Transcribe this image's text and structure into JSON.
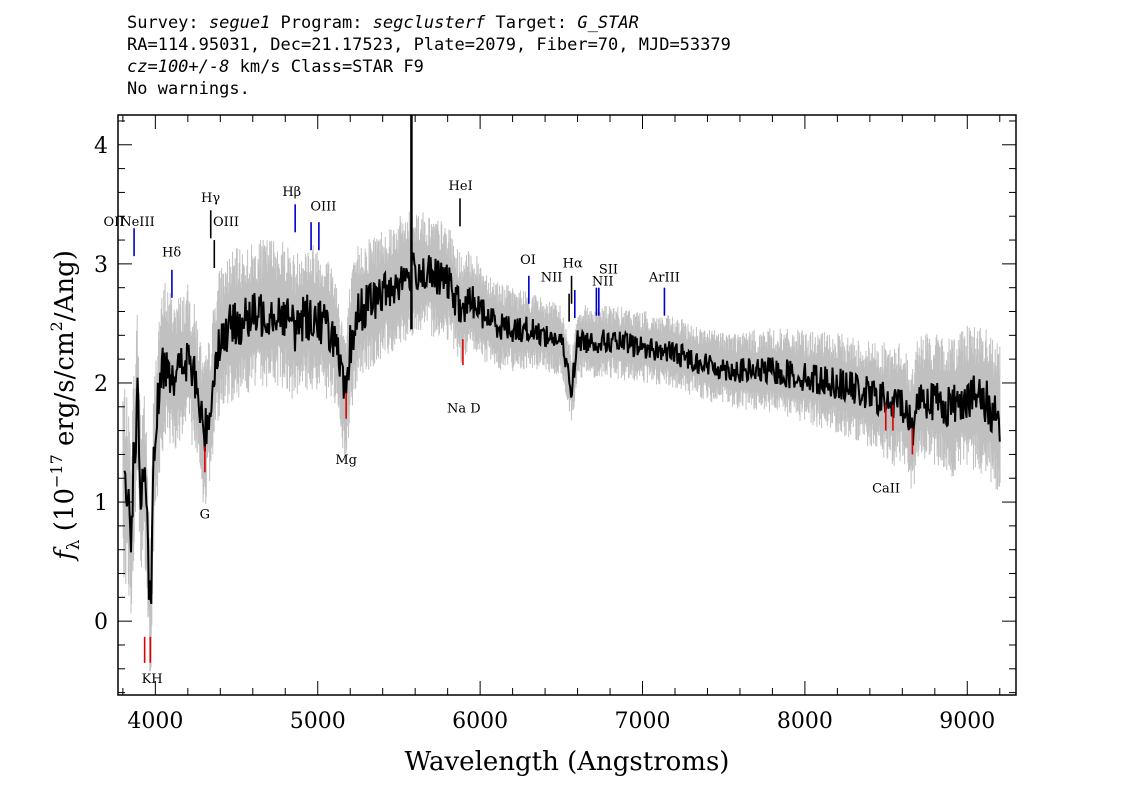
{
  "header": {
    "line1": {
      "survey_label": "Survey: ",
      "survey": "segue1",
      "program_label": " Program: ",
      "program": "segclusterf",
      "target_label": " Target: ",
      "target": "G_STAR"
    },
    "line2": "RA=114.95031, Dec=21.17523, Plate=2079, Fiber=70, MJD=53379",
    "line3": {
      "cz": "cz=100+/-8",
      "rest": " km/s Class=STAR F9"
    },
    "line4": "No warnings."
  },
  "chart_data": {
    "type": "line",
    "xlabel": "Wavelength (Angstroms)",
    "ylabel": "f_λ (10^-17 erg/s/cm^2/Ang)",
    "xlim": [
      3770,
      9300
    ],
    "ylim": [
      -0.62,
      4.25
    ],
    "xticks": [
      4000,
      5000,
      6000,
      7000,
      8000,
      9000
    ],
    "yticks": [
      0,
      1,
      2,
      3,
      4
    ],
    "colors": {
      "flux": "#000000",
      "noise": "#c0c0c0",
      "emission": "#0000cc",
      "absorption": "#dd0000",
      "neutral": "#000000"
    },
    "series": [
      {
        "role": "smoothed flux (black)",
        "x": [
          3810,
          3830,
          3850,
          3870,
          3890,
          3910,
          3930,
          3950,
          3970,
          3990,
          4020,
          4060,
          4100,
          4150,
          4200,
          4250,
          4300,
          4340,
          4380,
          4450,
          4500,
          4600,
          4700,
          4800,
          4861,
          4900,
          5000,
          5100,
          5150,
          5175,
          5200,
          5250,
          5300,
          5400,
          5500,
          5600,
          5700,
          5800,
          5850,
          5890,
          5950,
          6000,
          6100,
          6200,
          6300,
          6400,
          6500,
          6563,
          6600,
          6700,
          6800,
          7000,
          7200,
          7400,
          7600,
          7800,
          8000,
          8200,
          8400,
          8500,
          8542,
          8600,
          8662,
          8700,
          8800,
          8900,
          9000,
          9100,
          9200
        ],
        "y": [
          1.2,
          1.0,
          0.8,
          1.4,
          1.9,
          1.0,
          1.3,
          0.7,
          0.0,
          1.3,
          1.9,
          2.2,
          2.1,
          2.1,
          2.2,
          2.0,
          1.55,
          1.8,
          2.3,
          2.45,
          2.5,
          2.55,
          2.6,
          2.58,
          2.45,
          2.55,
          2.55,
          2.4,
          2.0,
          1.85,
          2.3,
          2.6,
          2.65,
          2.75,
          2.85,
          2.95,
          2.9,
          2.85,
          2.7,
          2.6,
          2.7,
          2.6,
          2.5,
          2.45,
          2.45,
          2.4,
          2.35,
          1.95,
          2.35,
          2.35,
          2.35,
          2.3,
          2.25,
          2.15,
          2.1,
          2.1,
          2.05,
          2.0,
          1.9,
          1.85,
          1.8,
          1.85,
          1.6,
          1.9,
          1.85,
          1.8,
          1.9,
          1.85,
          1.7
        ]
      },
      {
        "role": "noise band (grey)",
        "x": [
          3800,
          4000,
          4200,
          4400,
          4600,
          4800,
          5000,
          5200,
          5400,
          5600,
          5800,
          6000,
          6200,
          6400,
          6600,
          6800,
          7000,
          7200,
          7400,
          7600,
          7800,
          8000,
          8200,
          8400,
          8600,
          8800,
          9000,
          9200
        ],
        "y": [
          0.6,
          0.5,
          0.45,
          0.45,
          0.45,
          0.45,
          0.45,
          0.42,
          0.4,
          0.38,
          0.35,
          0.3,
          0.25,
          0.22,
          0.22,
          0.22,
          0.22,
          0.22,
          0.22,
          0.24,
          0.26,
          0.28,
          0.3,
          0.33,
          0.37,
          0.4,
          0.45,
          0.45
        ]
      }
    ],
    "lines": [
      {
        "label": "OII",
        "x": 3727,
        "y": 3.25,
        "kind": "emission"
      },
      {
        "label": "NeIII",
        "x": 3869,
        "y": 3.3,
        "kind": "emission"
      },
      {
        "label": "Hδ",
        "x": 4102,
        "y": 2.95,
        "kind": "emission"
      },
      {
        "label": "Hγ",
        "x": 4341,
        "y": 3.45,
        "kind": "neutral"
      },
      {
        "label": "OIII",
        "x": 4363,
        "y": 3.2,
        "kind": "neutral"
      },
      {
        "label": "Hβ",
        "x": 4861,
        "y": 3.5,
        "kind": "emission"
      },
      {
        "label": "OIII",
        "x": 4959,
        "y": 3.35,
        "kind": "emission"
      },
      {
        "label": "OIII",
        "x": 5007,
        "y": 3.35,
        "kind": "emission"
      },
      {
        "label": "HeI",
        "x": 5876,
        "y": 3.55,
        "kind": "neutral"
      },
      {
        "label": "OI",
        "x": 6300,
        "y": 2.9,
        "kind": "emission"
      },
      {
        "label": "NII",
        "x": 6548,
        "y": 2.75,
        "kind": "neutral"
      },
      {
        "label": "Hα",
        "x": 6563,
        "y": 2.9,
        "kind": "neutral"
      },
      {
        "label": "NII",
        "x": 6583,
        "y": 2.78,
        "kind": "emission"
      },
      {
        "label": "SII",
        "x": 6716,
        "y": 2.8,
        "kind": "emission"
      },
      {
        "label": "SII",
        "x": 6731,
        "y": 2.8,
        "kind": "emission"
      },
      {
        "label": "ArIII",
        "x": 7135,
        "y": 2.8,
        "kind": "emission"
      },
      {
        "label": "K",
        "x": 3934,
        "y": -0.35,
        "kind": "absorption"
      },
      {
        "label": "H",
        "x": 3969,
        "y": -0.35,
        "kind": "absorption"
      },
      {
        "label": "G",
        "x": 4305,
        "y": 1.25,
        "kind": "absorption"
      },
      {
        "label": "Mg",
        "x": 5175,
        "y": 1.7,
        "kind": "absorption"
      },
      {
        "label": "Na D",
        "x": 5894,
        "y": 2.15,
        "kind": "absorption"
      },
      {
        "label": "CaII",
        "x": 8498,
        "y": 1.6,
        "kind": "absorption"
      },
      {
        "label": "CaII",
        "x": 8542,
        "y": 1.6,
        "kind": "absorption"
      },
      {
        "label": "CaII",
        "x": 8662,
        "y": 1.4,
        "kind": "absorption"
      }
    ],
    "labels": [
      {
        "text": "OII",
        "x": 3745,
        "y": 3.32
      },
      {
        "text": "NeIII",
        "x": 3890,
        "y": 3.32
      },
      {
        "text": "Hδ",
        "x": 4100,
        "y": 3.06
      },
      {
        "text": "Hγ",
        "x": 4340,
        "y": 3.52
      },
      {
        "text": "OIII",
        "x": 4435,
        "y": 3.32
      },
      {
        "text": "Hβ",
        "x": 4840,
        "y": 3.57
      },
      {
        "text": "OIII",
        "x": 5035,
        "y": 3.45
      },
      {
        "text": "HeI",
        "x": 5880,
        "y": 3.62
      },
      {
        "text": "OI",
        "x": 6295,
        "y": 3.0
      },
      {
        "text": "NII",
        "x": 6440,
        "y": 2.85
      },
      {
        "text": "Hα",
        "x": 6570,
        "y": 2.97
      },
      {
        "text": "SII",
        "x": 6790,
        "y": 2.92
      },
      {
        "text": "NII",
        "x": 6755,
        "y": 2.82
      },
      {
        "text": "ArIII",
        "x": 7135,
        "y": 2.85
      },
      {
        "text": "KH",
        "x": 3980,
        "y": -0.52
      },
      {
        "text": "G",
        "x": 4305,
        "y": 0.86
      },
      {
        "text": "Mg",
        "x": 5175,
        "y": 1.32
      },
      {
        "text": "Na D",
        "x": 5900,
        "y": 1.75
      },
      {
        "text": "CaII",
        "x": 8500,
        "y": 1.08
      }
    ]
  }
}
